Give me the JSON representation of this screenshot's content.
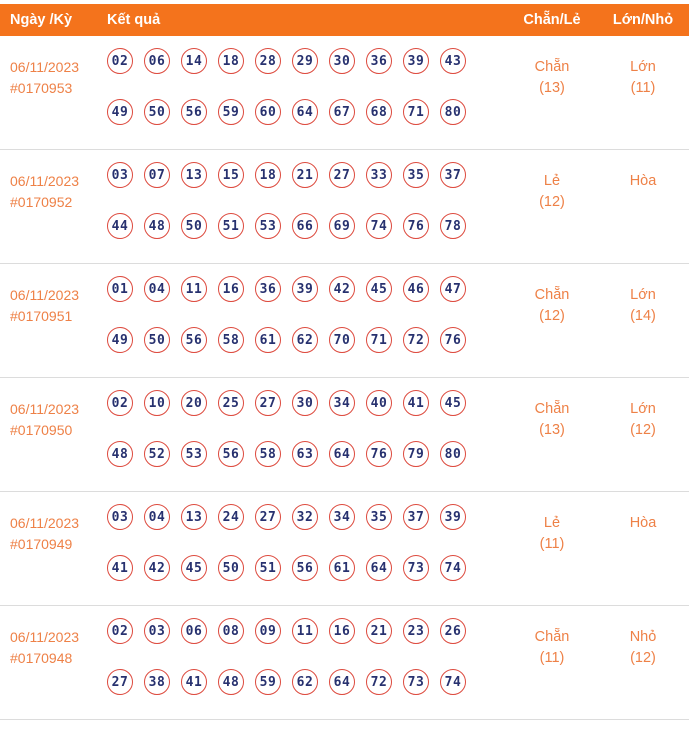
{
  "colors": {
    "header_bg": "#f4731c",
    "orange_text": "#ee8147",
    "ball_border": "#dd4a3e",
    "ball_text": "#27316f",
    "row_border": "#dcdcdc"
  },
  "header": {
    "date_col": "Ngày /Kỳ",
    "result_col": "Kết quả",
    "evenodd_col": "Chẵn/Lẻ",
    "bigsmall_col": "Lớn/Nhỏ"
  },
  "rows": [
    {
      "date": "06/11/2023",
      "draw_id": "#0170953",
      "numbers_line1": [
        "02",
        "06",
        "14",
        "18",
        "28",
        "29",
        "30",
        "36",
        "39",
        "43"
      ],
      "numbers_line2": [
        "49",
        "50",
        "56",
        "59",
        "60",
        "64",
        "67",
        "68",
        "71",
        "80"
      ],
      "evenodd_label": "Chẵn",
      "evenodd_count": "(13)",
      "bigsmall_label": "Lớn",
      "bigsmall_count": "(11)"
    },
    {
      "date": "06/11/2023",
      "draw_id": "#0170952",
      "numbers_line1": [
        "03",
        "07",
        "13",
        "15",
        "18",
        "21",
        "27",
        "33",
        "35",
        "37"
      ],
      "numbers_line2": [
        "44",
        "48",
        "50",
        "51",
        "53",
        "66",
        "69",
        "74",
        "76",
        "78"
      ],
      "evenodd_label": "Lẻ",
      "evenodd_count": "(12)",
      "bigsmall_label": "Hòa",
      "bigsmall_count": ""
    },
    {
      "date": "06/11/2023",
      "draw_id": "#0170951",
      "numbers_line1": [
        "01",
        "04",
        "11",
        "16",
        "36",
        "39",
        "42",
        "45",
        "46",
        "47"
      ],
      "numbers_line2": [
        "49",
        "50",
        "56",
        "58",
        "61",
        "62",
        "70",
        "71",
        "72",
        "76"
      ],
      "evenodd_label": "Chẵn",
      "evenodd_count": "(12)",
      "bigsmall_label": "Lớn",
      "bigsmall_count": "(14)"
    },
    {
      "date": "06/11/2023",
      "draw_id": "#0170950",
      "numbers_line1": [
        "02",
        "10",
        "20",
        "25",
        "27",
        "30",
        "34",
        "40",
        "41",
        "45"
      ],
      "numbers_line2": [
        "48",
        "52",
        "53",
        "56",
        "58",
        "63",
        "64",
        "76",
        "79",
        "80"
      ],
      "evenodd_label": "Chẵn",
      "evenodd_count": "(13)",
      "bigsmall_label": "Lớn",
      "bigsmall_count": "(12)"
    },
    {
      "date": "06/11/2023",
      "draw_id": "#0170949",
      "numbers_line1": [
        "03",
        "04",
        "13",
        "24",
        "27",
        "32",
        "34",
        "35",
        "37",
        "39"
      ],
      "numbers_line2": [
        "41",
        "42",
        "45",
        "50",
        "51",
        "56",
        "61",
        "64",
        "73",
        "74"
      ],
      "evenodd_label": "Lẻ",
      "evenodd_count": "(11)",
      "bigsmall_label": "Hòa",
      "bigsmall_count": ""
    },
    {
      "date": "06/11/2023",
      "draw_id": "#0170948",
      "numbers_line1": [
        "02",
        "03",
        "06",
        "08",
        "09",
        "11",
        "16",
        "21",
        "23",
        "26"
      ],
      "numbers_line2": [
        "27",
        "38",
        "41",
        "48",
        "59",
        "62",
        "64",
        "72",
        "73",
        "74"
      ],
      "evenodd_label": "Chẵn",
      "evenodd_count": "(11)",
      "bigsmall_label": "Nhỏ",
      "bigsmall_count": "(12)"
    }
  ]
}
